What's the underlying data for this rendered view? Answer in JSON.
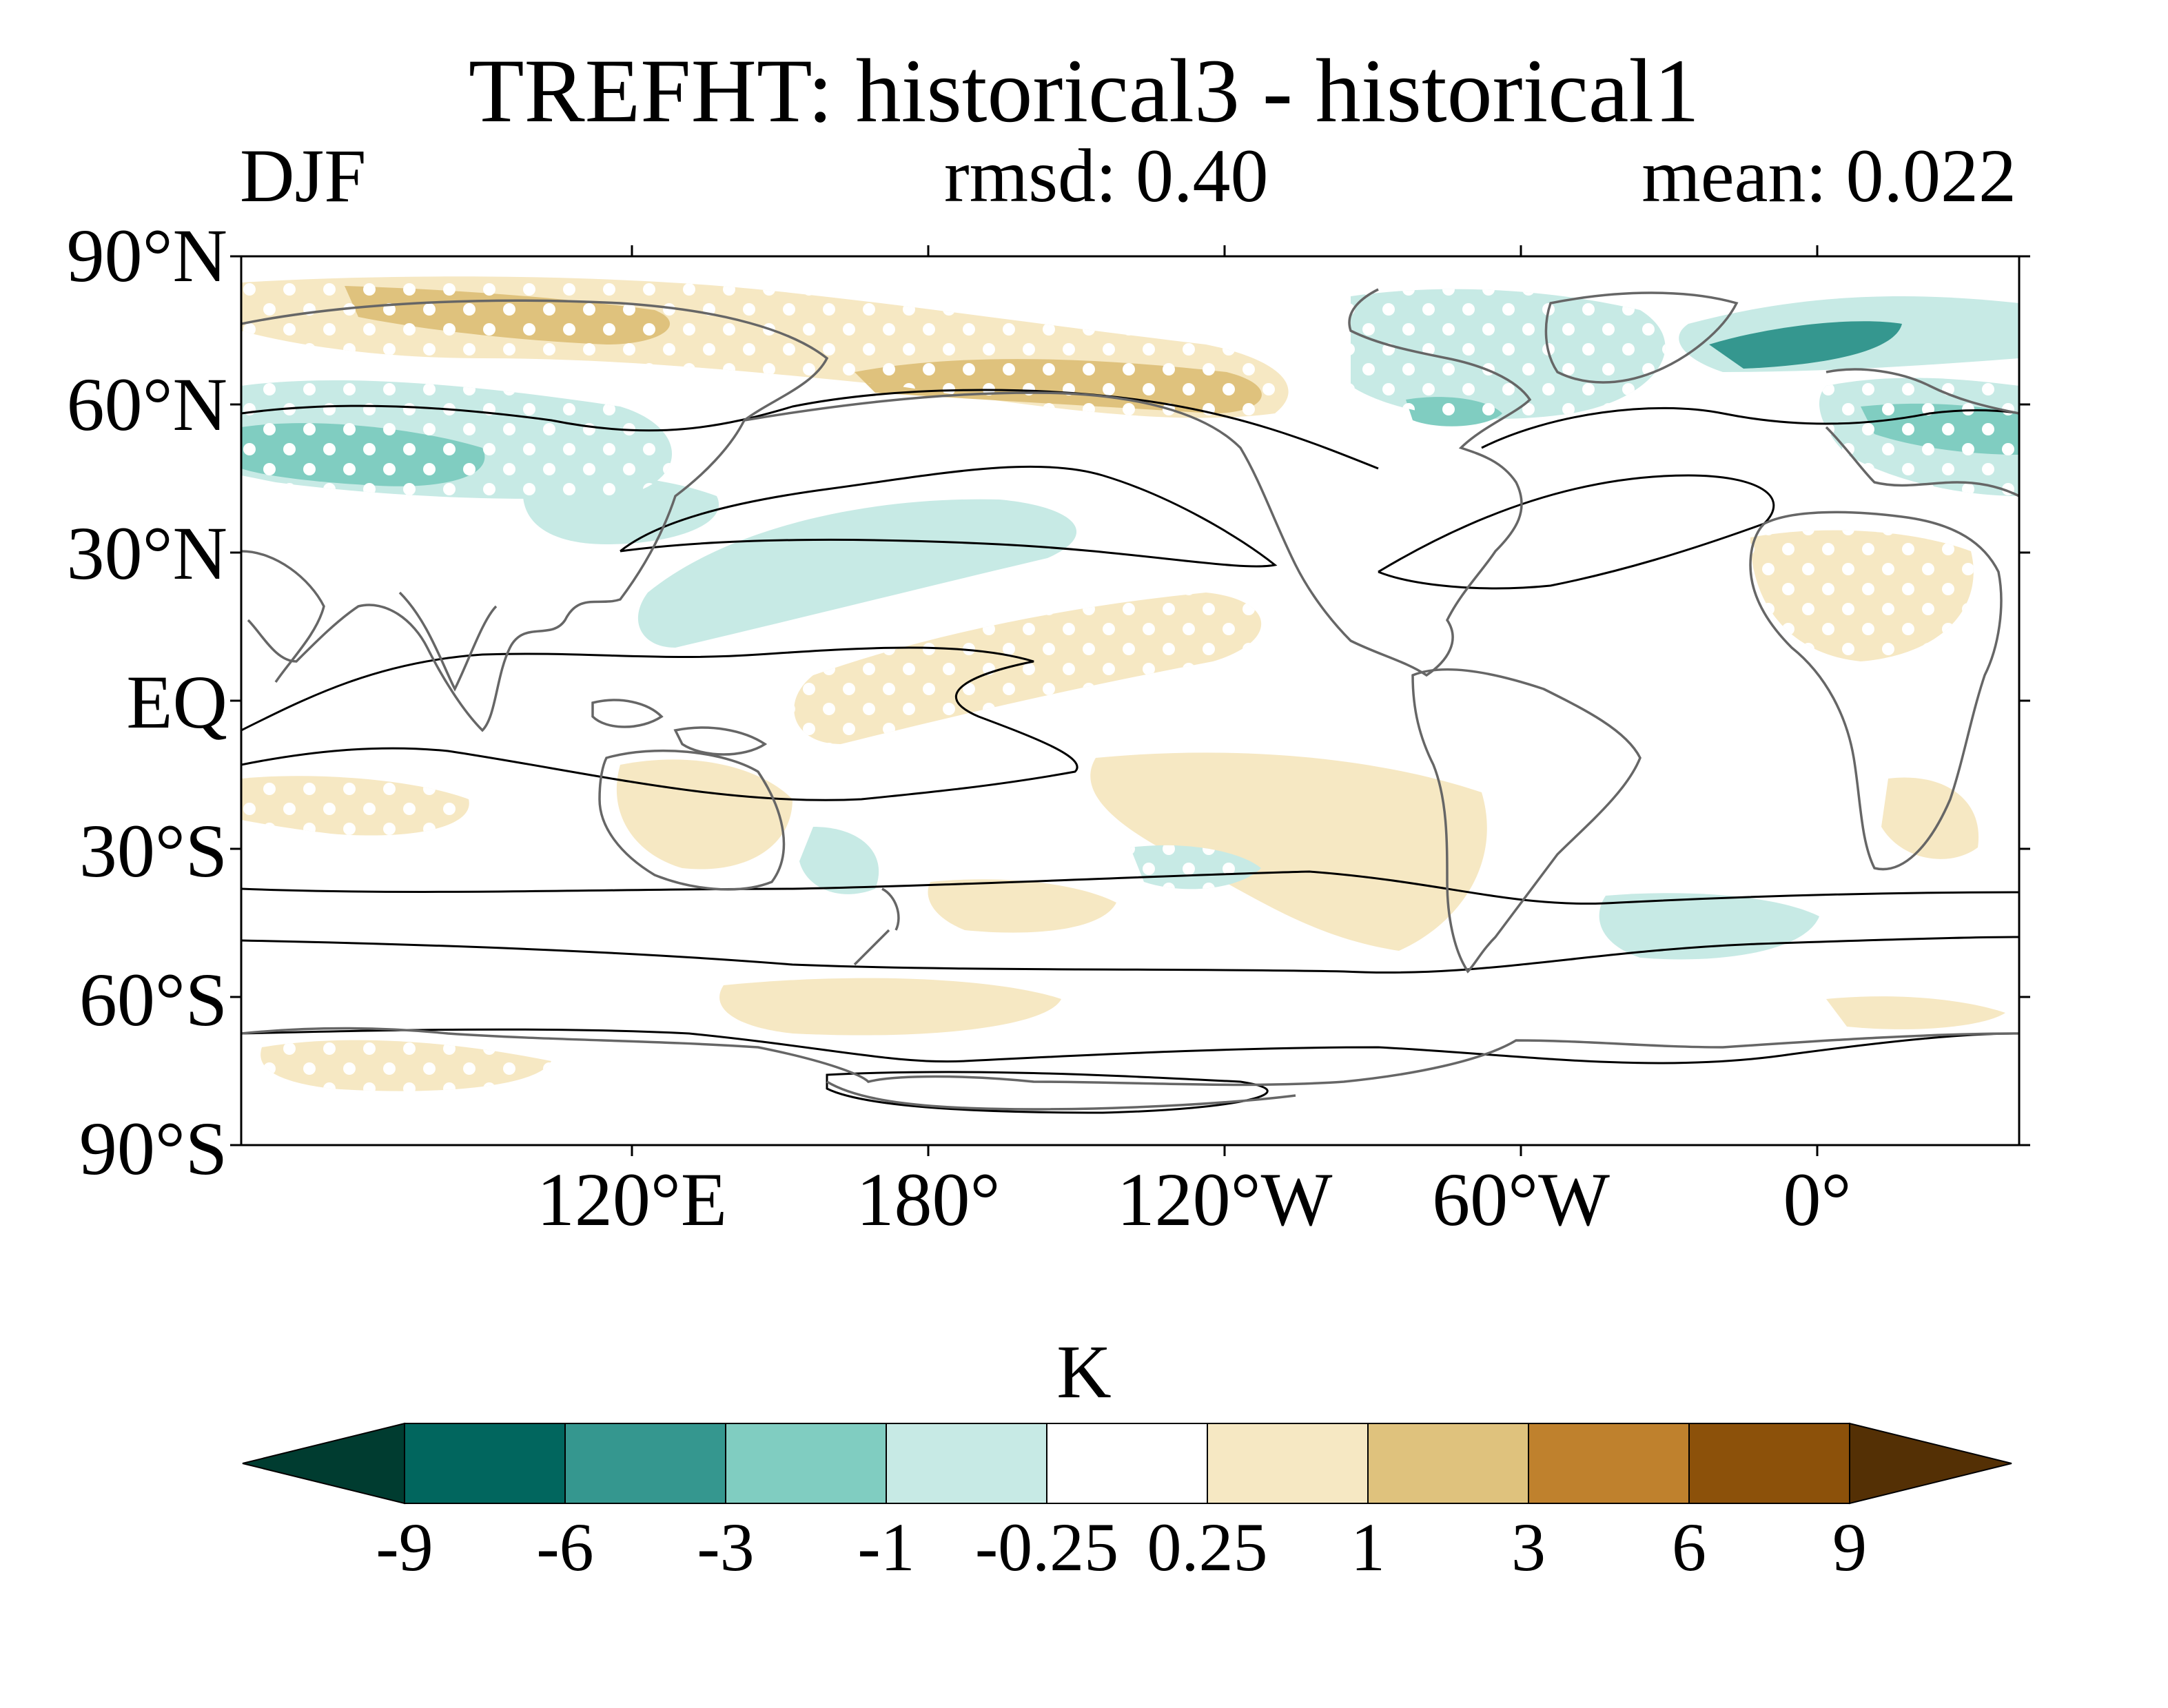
{
  "header": {
    "title": "TREFHT: historical3 - historical1",
    "season": "DJF",
    "rmsd": "rmsd: 0.40",
    "mean": "mean: 0.022"
  },
  "axes": {
    "lat_labels": [
      "90°N",
      "60°N",
      "30°N",
      "EQ",
      "30°S",
      "60°S",
      "90°S"
    ],
    "lon_labels": [
      "120°E",
      "180°",
      "120°W",
      "60°W",
      "0°"
    ]
  },
  "colorbar": {
    "unit": "K",
    "levels": [
      "-9",
      "-6",
      "-3",
      "-1",
      "-0.25",
      "0.25",
      "1",
      "3",
      "6",
      "9"
    ],
    "colors": [
      "#003c30",
      "#01665e",
      "#35978f",
      "#80cdc1",
      "#c7eae5",
      "#ffffff",
      "#f6e8c3",
      "#dfc27d",
      "#bf812d",
      "#8c510a",
      "#543005"
    ]
  },
  "map": {
    "projection": "cylindrical equidistant",
    "central_longitude": "~200°",
    "overlay": "white dots mark regions of significance; black contours show climatology"
  }
}
